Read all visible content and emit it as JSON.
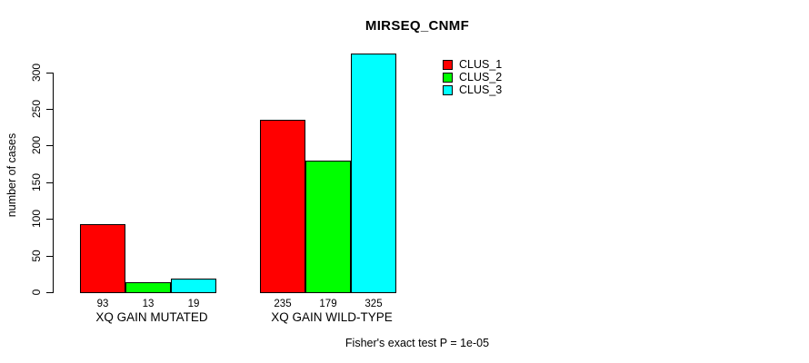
{
  "chart_data": {
    "type": "bar",
    "title": "MIRSEQ_CNMF",
    "xlabel": "",
    "ylabel": "number of cases",
    "categories": [
      "XQ GAIN MUTATED",
      "XQ GAIN WILD-TYPE"
    ],
    "series": [
      {
        "name": "CLUS_1",
        "color": "#ff0000",
        "values": [
          93,
          235
        ]
      },
      {
        "name": "CLUS_2",
        "color": "#00ff00",
        "values": [
          13,
          179
        ]
      },
      {
        "name": "CLUS_3",
        "color": "#00ffff",
        "values": [
          19,
          325
        ]
      }
    ],
    "y_ticks": [
      0,
      50,
      100,
      150,
      200,
      250,
      300
    ],
    "ylim": [
      0,
      325
    ],
    "grid": false,
    "bar_value_labels": [
      [
        "93",
        "13",
        "19"
      ],
      [
        "235",
        "179",
        "325"
      ]
    ],
    "legend_position": "top-right",
    "legend_entries": [
      "CLUS_1",
      "CLUS_2",
      "CLUS_3"
    ],
    "annotation": "Fisher's exact test P = 1e-05"
  }
}
